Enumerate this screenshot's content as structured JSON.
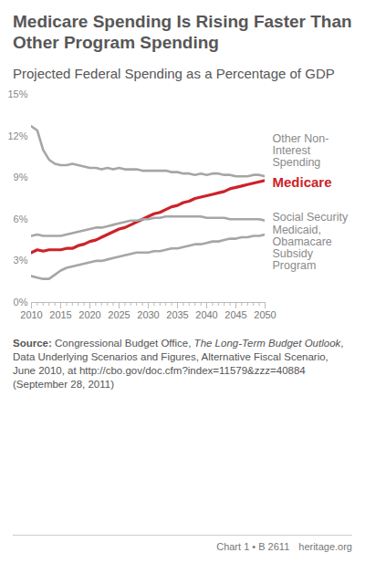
{
  "chart_data": {
    "type": "line",
    "title": "Medicare Spending Is Rising Faster Than Other Program Spending",
    "subtitle": "Projected Federal Spending as a Percentage of GDP",
    "x": [
      2010,
      2011,
      2012,
      2013,
      2014,
      2015,
      2016,
      2017,
      2018,
      2019,
      2020,
      2021,
      2022,
      2023,
      2024,
      2025,
      2026,
      2027,
      2028,
      2029,
      2030,
      2031,
      2032,
      2033,
      2034,
      2035,
      2036,
      2037,
      2038,
      2039,
      2040,
      2041,
      2042,
      2043,
      2044,
      2045,
      2046,
      2047,
      2048,
      2049,
      2050
    ],
    "series": [
      {
        "name": "Other Non-Interest Spending",
        "color": "#a6a6a6",
        "values": [
          12.7,
          12.4,
          11.0,
          10.3,
          10.0,
          9.9,
          9.9,
          10.0,
          9.9,
          9.8,
          9.7,
          9.7,
          9.6,
          9.7,
          9.6,
          9.7,
          9.6,
          9.6,
          9.6,
          9.5,
          9.5,
          9.5,
          9.5,
          9.5,
          9.4,
          9.4,
          9.3,
          9.3,
          9.2,
          9.3,
          9.2,
          9.3,
          9.3,
          9.2,
          9.2,
          9.1,
          9.1,
          9.1,
          9.2,
          9.2,
          9.1
        ]
      },
      {
        "name": "Medicare",
        "color": "#cc2229",
        "values": [
          3.6,
          3.8,
          3.7,
          3.8,
          3.8,
          3.8,
          3.9,
          3.9,
          4.1,
          4.2,
          4.4,
          4.5,
          4.7,
          4.9,
          5.1,
          5.3,
          5.4,
          5.6,
          5.8,
          6.0,
          6.2,
          6.4,
          6.5,
          6.7,
          6.9,
          7.0,
          7.2,
          7.3,
          7.5,
          7.6,
          7.7,
          7.8,
          7.9,
          8.0,
          8.2,
          8.3,
          8.4,
          8.5,
          8.6,
          8.7,
          8.8
        ]
      },
      {
        "name": "Social Security",
        "color": "#a6a6a6",
        "values": [
          4.8,
          4.9,
          4.8,
          4.8,
          4.8,
          4.8,
          4.9,
          5.0,
          5.1,
          5.2,
          5.3,
          5.4,
          5.4,
          5.5,
          5.6,
          5.7,
          5.8,
          5.9,
          5.9,
          6.0,
          6.0,
          6.1,
          6.1,
          6.2,
          6.2,
          6.2,
          6.2,
          6.2,
          6.2,
          6.2,
          6.1,
          6.1,
          6.1,
          6.1,
          6.0,
          6.0,
          6.0,
          6.0,
          6.0,
          6.0,
          5.9
        ]
      },
      {
        "name": "Medicaid, Obamacare Subsidy Program",
        "color": "#a6a6a6",
        "values": [
          1.9,
          1.8,
          1.7,
          1.7,
          2.0,
          2.3,
          2.5,
          2.6,
          2.7,
          2.8,
          2.9,
          3.0,
          3.0,
          3.1,
          3.2,
          3.3,
          3.4,
          3.5,
          3.6,
          3.6,
          3.6,
          3.7,
          3.7,
          3.8,
          3.9,
          3.9,
          4.0,
          4.1,
          4.2,
          4.2,
          4.3,
          4.4,
          4.4,
          4.5,
          4.6,
          4.6,
          4.7,
          4.7,
          4.8,
          4.8,
          4.9
        ]
      }
    ],
    "xlim": [
      2010,
      2050
    ],
    "xticks": [
      2010,
      2015,
      2020,
      2025,
      2030,
      2035,
      2040,
      2045,
      2050
    ],
    "ylim": [
      0,
      15
    ],
    "yticks": [
      {
        "value": 0,
        "label": "0%"
      },
      {
        "value": 3,
        "label": "3%"
      },
      {
        "value": 6,
        "label": "6%"
      },
      {
        "value": 9,
        "label": "9%"
      },
      {
        "value": 12,
        "label": "12%"
      },
      {
        "value": 15,
        "label": "15%"
      }
    ],
    "grid": false,
    "source_label": "Source:",
    "source": [
      "Congressional Budget Office, ",
      "The Long-Term Budget Outlook",
      ", Data Underlying Scenarios and Figures, Alternative Fiscal Scenario, June 2010, at http://cbo.gov/doc.cfm?index=11579&zzz=40884 (September 28, 2011)"
    ],
    "footer": [
      "Chart 1 • B 2611",
      "heritage.org"
    ]
  }
}
